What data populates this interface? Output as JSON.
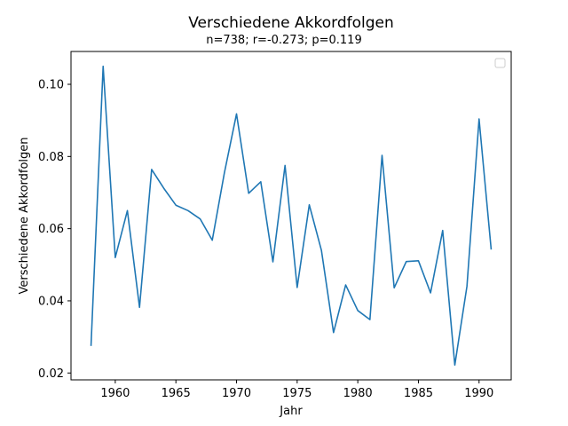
{
  "chart_data": {
    "type": "line",
    "title": "Verschiedene Akkordfolgen",
    "subtitle": "n=738; r=-0.273; p=0.119",
    "xlabel": "Jahr",
    "ylabel": "Verschiedene Akkordfolgen",
    "xlim": [
      1956.35,
      1992.65
    ],
    "ylim": [
      0.0181,
      0.1091
    ],
    "xticks": [
      1960,
      1965,
      1970,
      1975,
      1980,
      1985,
      1990
    ],
    "yticks": [
      0.02,
      0.04,
      0.06,
      0.08,
      0.1
    ],
    "xtick_labels": [
      "1960",
      "1965",
      "1970",
      "1975",
      "1980",
      "1985",
      "1990"
    ],
    "ytick_labels": [
      "0.02",
      "0.04",
      "0.06",
      "0.08",
      "0.10"
    ],
    "grid": false,
    "legend": "top-right (empty)",
    "series": [
      {
        "color": "#1f77b4",
        "x": [
          1958,
          1959,
          1960,
          1961,
          1962,
          1963,
          1964,
          1965,
          1966,
          1967,
          1968,
          1969,
          1970,
          1971,
          1972,
          1973,
          1974,
          1975,
          1976,
          1977,
          1978,
          1979,
          1980,
          1981,
          1982,
          1983,
          1984,
          1985,
          1986,
          1987,
          1988,
          1989,
          1990,
          1991
        ],
        "y": [
          0.0275,
          0.105,
          0.052,
          0.065,
          0.0382,
          0.0764,
          0.0712,
          0.0665,
          0.065,
          0.0627,
          0.0568,
          0.0755,
          0.0918,
          0.0698,
          0.073,
          0.0508,
          0.0775,
          0.0437,
          0.0666,
          0.054,
          0.0312,
          0.0444,
          0.0373,
          0.0348,
          0.0803,
          0.0436,
          0.0509,
          0.0511,
          0.0422,
          0.0595,
          0.0222,
          0.044,
          0.0904,
          0.0542
        ]
      }
    ]
  }
}
